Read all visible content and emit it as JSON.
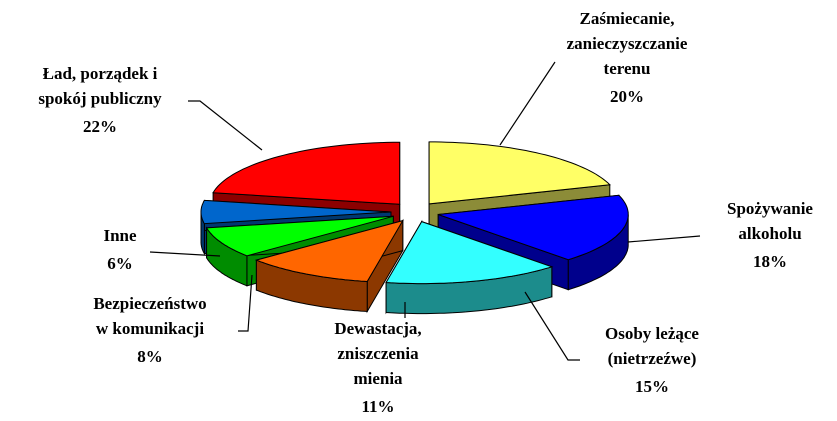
{
  "chart_data": {
    "type": "pie3d",
    "categories": [
      "Zaśmiecanie,\nzanieczyszczanie\nterenu",
      "Spożywanie\nalkoholu",
      "Osoby leżące\n(nietrzeźwe)",
      "Dewastacja,\nzniszczenia\nmienia",
      "Bezpieczeństwo\nw komunikacji",
      "Inne",
      "Ład, porządek i\nspokój publiczny"
    ],
    "values": [
      20,
      18,
      15,
      11,
      8,
      6,
      22
    ],
    "value_labels": [
      "20%",
      "18%",
      "15%",
      "11%",
      "8%",
      "6%",
      "22%"
    ],
    "colors": [
      "#ffff66",
      "#0000ff",
      "#33ffff",
      "#ff6600",
      "#00ff00",
      "#0066cc",
      "#ff0000"
    ]
  }
}
